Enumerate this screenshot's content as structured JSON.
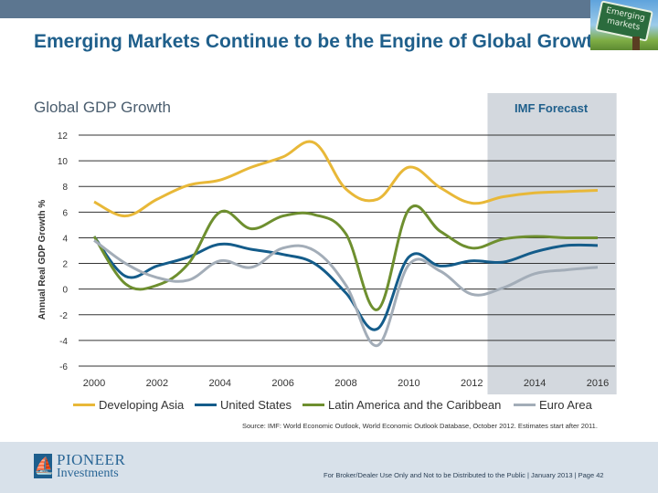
{
  "header": {
    "title": "Emerging Markets Continue to be the Engine of Global Growth",
    "badge_text": "Emerging markets"
  },
  "chart_section": {
    "subtitle": "Global GDP Growth",
    "forecast_label": "IMF Forecast"
  },
  "chart_data": {
    "type": "line",
    "title": "Global GDP Growth",
    "xlabel": "",
    "ylabel": "Annual Real GDP Growth %",
    "x": [
      2000,
      2001,
      2002,
      2003,
      2004,
      2005,
      2006,
      2007,
      2008,
      2009,
      2010,
      2011,
      2012,
      2013,
      2014,
      2015,
      2016
    ],
    "x_ticks": [
      "2000",
      "2002",
      "2004",
      "2006",
      "2008",
      "2010",
      "2012",
      "2014",
      "2016"
    ],
    "y_ticks": [
      "12",
      "10",
      "8",
      "6",
      "4",
      "2",
      "0",
      "-2",
      "-4",
      "-6"
    ],
    "ylim": [
      -6,
      12
    ],
    "xlim": [
      2000,
      2016
    ],
    "grid": true,
    "forecast_region": {
      "label": "IMF Forecast",
      "start": 2012.5,
      "end": 2016.6
    },
    "legend_position": "bottom",
    "series": [
      {
        "name": "Developing Asia",
        "color": "#e8b838",
        "values": [
          6.8,
          5.7,
          7.0,
          8.1,
          8.5,
          9.5,
          10.3,
          11.4,
          7.8,
          7.0,
          9.5,
          7.9,
          6.7,
          7.2,
          7.5,
          7.6,
          7.7
        ]
      },
      {
        "name": "United States",
        "color": "#145c8a",
        "values": [
          4.1,
          1.0,
          1.8,
          2.5,
          3.5,
          3.1,
          2.7,
          2.0,
          -0.3,
          -3.1,
          2.5,
          1.8,
          2.2,
          2.1,
          2.9,
          3.4,
          3.4
        ]
      },
      {
        "name": "Latin America and the Caribbean",
        "color": "#6e8f2f",
        "values": [
          4.1,
          0.4,
          0.3,
          2.0,
          6.0,
          4.7,
          5.7,
          5.8,
          4.3,
          -1.6,
          6.2,
          4.5,
          3.2,
          3.9,
          4.1,
          4.0,
          4.0
        ]
      },
      {
        "name": "Euro Area",
        "color": "#a3adb8",
        "values": [
          3.8,
          2.0,
          0.9,
          0.7,
          2.2,
          1.7,
          3.2,
          3.0,
          0.3,
          -4.4,
          1.9,
          1.4,
          -0.4,
          0.1,
          1.2,
          1.5,
          1.7
        ]
      }
    ]
  },
  "source_note": "Source: IMF: World Economic Outlook, World Economic Outlook Database, October 2012. Estimates start after 2011.",
  "footer": {
    "logo_line1": "PIONEER",
    "logo_line2": "Investments",
    "disclaimer": "For Broker/Dealer Use Only and Not to be Distributed to the Public  | January 2013  | Page 42"
  }
}
